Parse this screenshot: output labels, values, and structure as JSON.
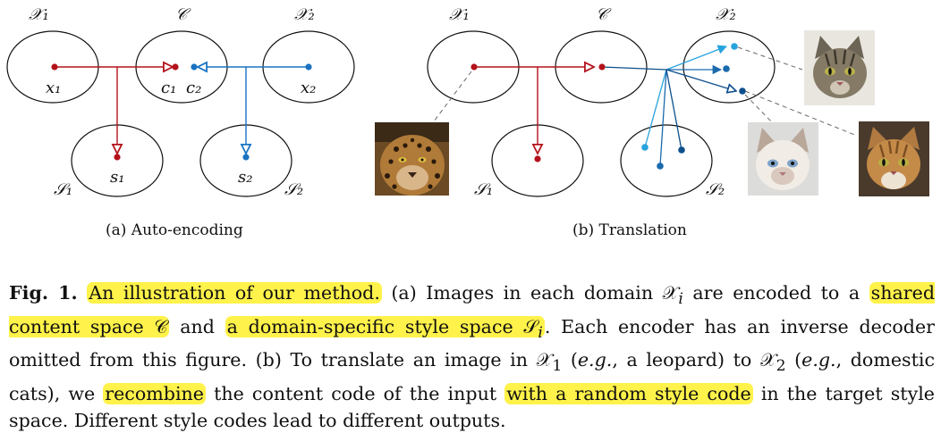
{
  "figure": {
    "panel_a": {
      "x1_space": "𝒳₁",
      "content_space": "𝒞",
      "x2_space": "𝒳₂",
      "s1_space": "𝒮₁",
      "s2_space": "𝒮₂",
      "point_x1": "x₁",
      "point_c1": "c₁",
      "point_c2": "c₂",
      "point_x2": "x₂",
      "point_s1": "s₁",
      "point_s2": "s₂",
      "subcaption": "(a) Auto-encoding"
    },
    "panel_b": {
      "x1_space": "𝒳₁",
      "content_space": "𝒞",
      "x2_space": "𝒳₂",
      "s1_space": "𝒮₁",
      "s2_space": "𝒮₂",
      "subcaption": "(b) Translation",
      "images": [
        "leopard",
        "tabby-cat",
        "siamese-cat",
        "orange-tabby-cat"
      ]
    },
    "colors": {
      "red": "#b3121b",
      "blue": "#1a73c1",
      "light_blue": "#27a3dd",
      "dark_blue": "#0d4f8c"
    }
  },
  "caption": {
    "label": "Fig. 1.",
    "h1": "An illustration of our method.",
    "t1": " (a) Images in each domain 𝒳",
    "t1_sub": "i",
    "t2": " are encoded to a ",
    "h2": "shared content space 𝒞",
    "t3": " and ",
    "h3a": "a domain-specific style space 𝒮",
    "h3_sub": "i",
    "t4": ". Each encoder has an inverse decoder omitted from this figure. (b) To translate an image in 𝒳",
    "t4_sub": "1",
    "t5": " (",
    "t5_eg": "e.g.",
    "t6": ", a leopard) to 𝒳",
    "t6_sub": "2",
    "t7": " (",
    "t7_eg": "e.g.",
    "t8": ", domestic cats), we ",
    "h4": "recombine",
    "t9": " the content code of the input ",
    "h5": "with a random style code",
    "t10": " in the target style space. Different style codes lead to different outputs."
  }
}
